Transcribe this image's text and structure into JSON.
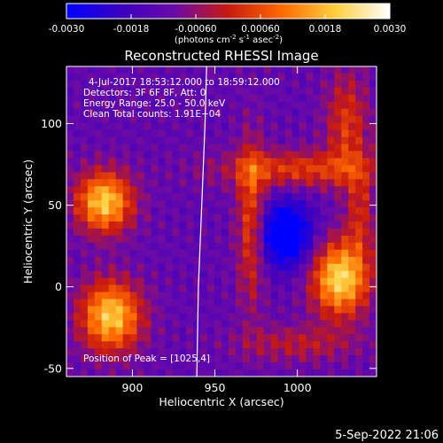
{
  "chart_data": {
    "type": "heatmap",
    "title": "Reconstructed RHESSI Image",
    "colorbar": {
      "ticks": [
        "-0.0030",
        "-0.0018",
        "-0.00060",
        "0.00060",
        "0.0018",
        "0.0030"
      ],
      "range": [
        -0.003,
        0.003
      ],
      "label_parts": [
        "(photons cm",
        "-2",
        " s",
        "-1",
        " asec",
        "-2",
        ")"
      ],
      "colors": [
        "#0000ff",
        "#3a00c0",
        "#6a0aa8",
        "#c81a10",
        "#ff6a00",
        "#ffd040",
        "#ffffff"
      ]
    },
    "info_lines": [
      "4-Jul-2017 18:53:12.000 to 18:59:12.000",
      "Detectors: 3F 6F 8F, Att: 0",
      "Energy Range: 25.0 - 50.0 keV",
      "Clean      Total counts: 1.91E+04"
    ],
    "peak_text": "Position of Peak = [1025,4]",
    "xlabel": "Heliocentric X (arcsec)",
    "ylabel": "Heliocentric Y (arcsec)",
    "xticks": [
      "900",
      "950",
      "1000"
    ],
    "yticks": [
      "-50",
      "0",
      "50",
      "100"
    ],
    "xlim": [
      860,
      1048
    ],
    "ylim": [
      -55,
      135
    ],
    "peak": [
      1025,
      4
    ],
    "limb": [
      [
        945,
        135
      ],
      [
        944,
        100
      ],
      [
        942,
        50
      ],
      [
        940,
        0
      ],
      [
        939,
        -55
      ]
    ],
    "sources": [
      {
        "x": 883,
        "y": 52,
        "sx": 12,
        "sy": 13,
        "amp": 0.0032
      },
      {
        "x": 887,
        "y": -18,
        "sx": 13,
        "sy": 15,
        "amp": 0.0032
      },
      {
        "x": 1026,
        "y": 5,
        "sx": 12,
        "sy": 16,
        "amp": 0.0034
      },
      {
        "x": 1000,
        "y": 72,
        "sx": 34,
        "sy": 8,
        "amp": 0.0016
      },
      {
        "x": 972,
        "y": 40,
        "sx": 6,
        "sy": 35,
        "amp": 0.0018
      },
      {
        "x": 1030,
        "y": 100,
        "sx": 9,
        "sy": 22,
        "amp": 0.0015
      },
      {
        "x": 1038,
        "y": 45,
        "sx": 6,
        "sy": 20,
        "amp": 0.0012
      },
      {
        "x": 1000,
        "y": -35,
        "sx": 26,
        "sy": 8,
        "amp": 0.001
      },
      {
        "x": 993,
        "y": 32,
        "sx": 11,
        "sy": 14,
        "amp": -0.0028
      }
    ],
    "background": -0.0012
  },
  "footer_date": "5-Sep-2022 21:06"
}
